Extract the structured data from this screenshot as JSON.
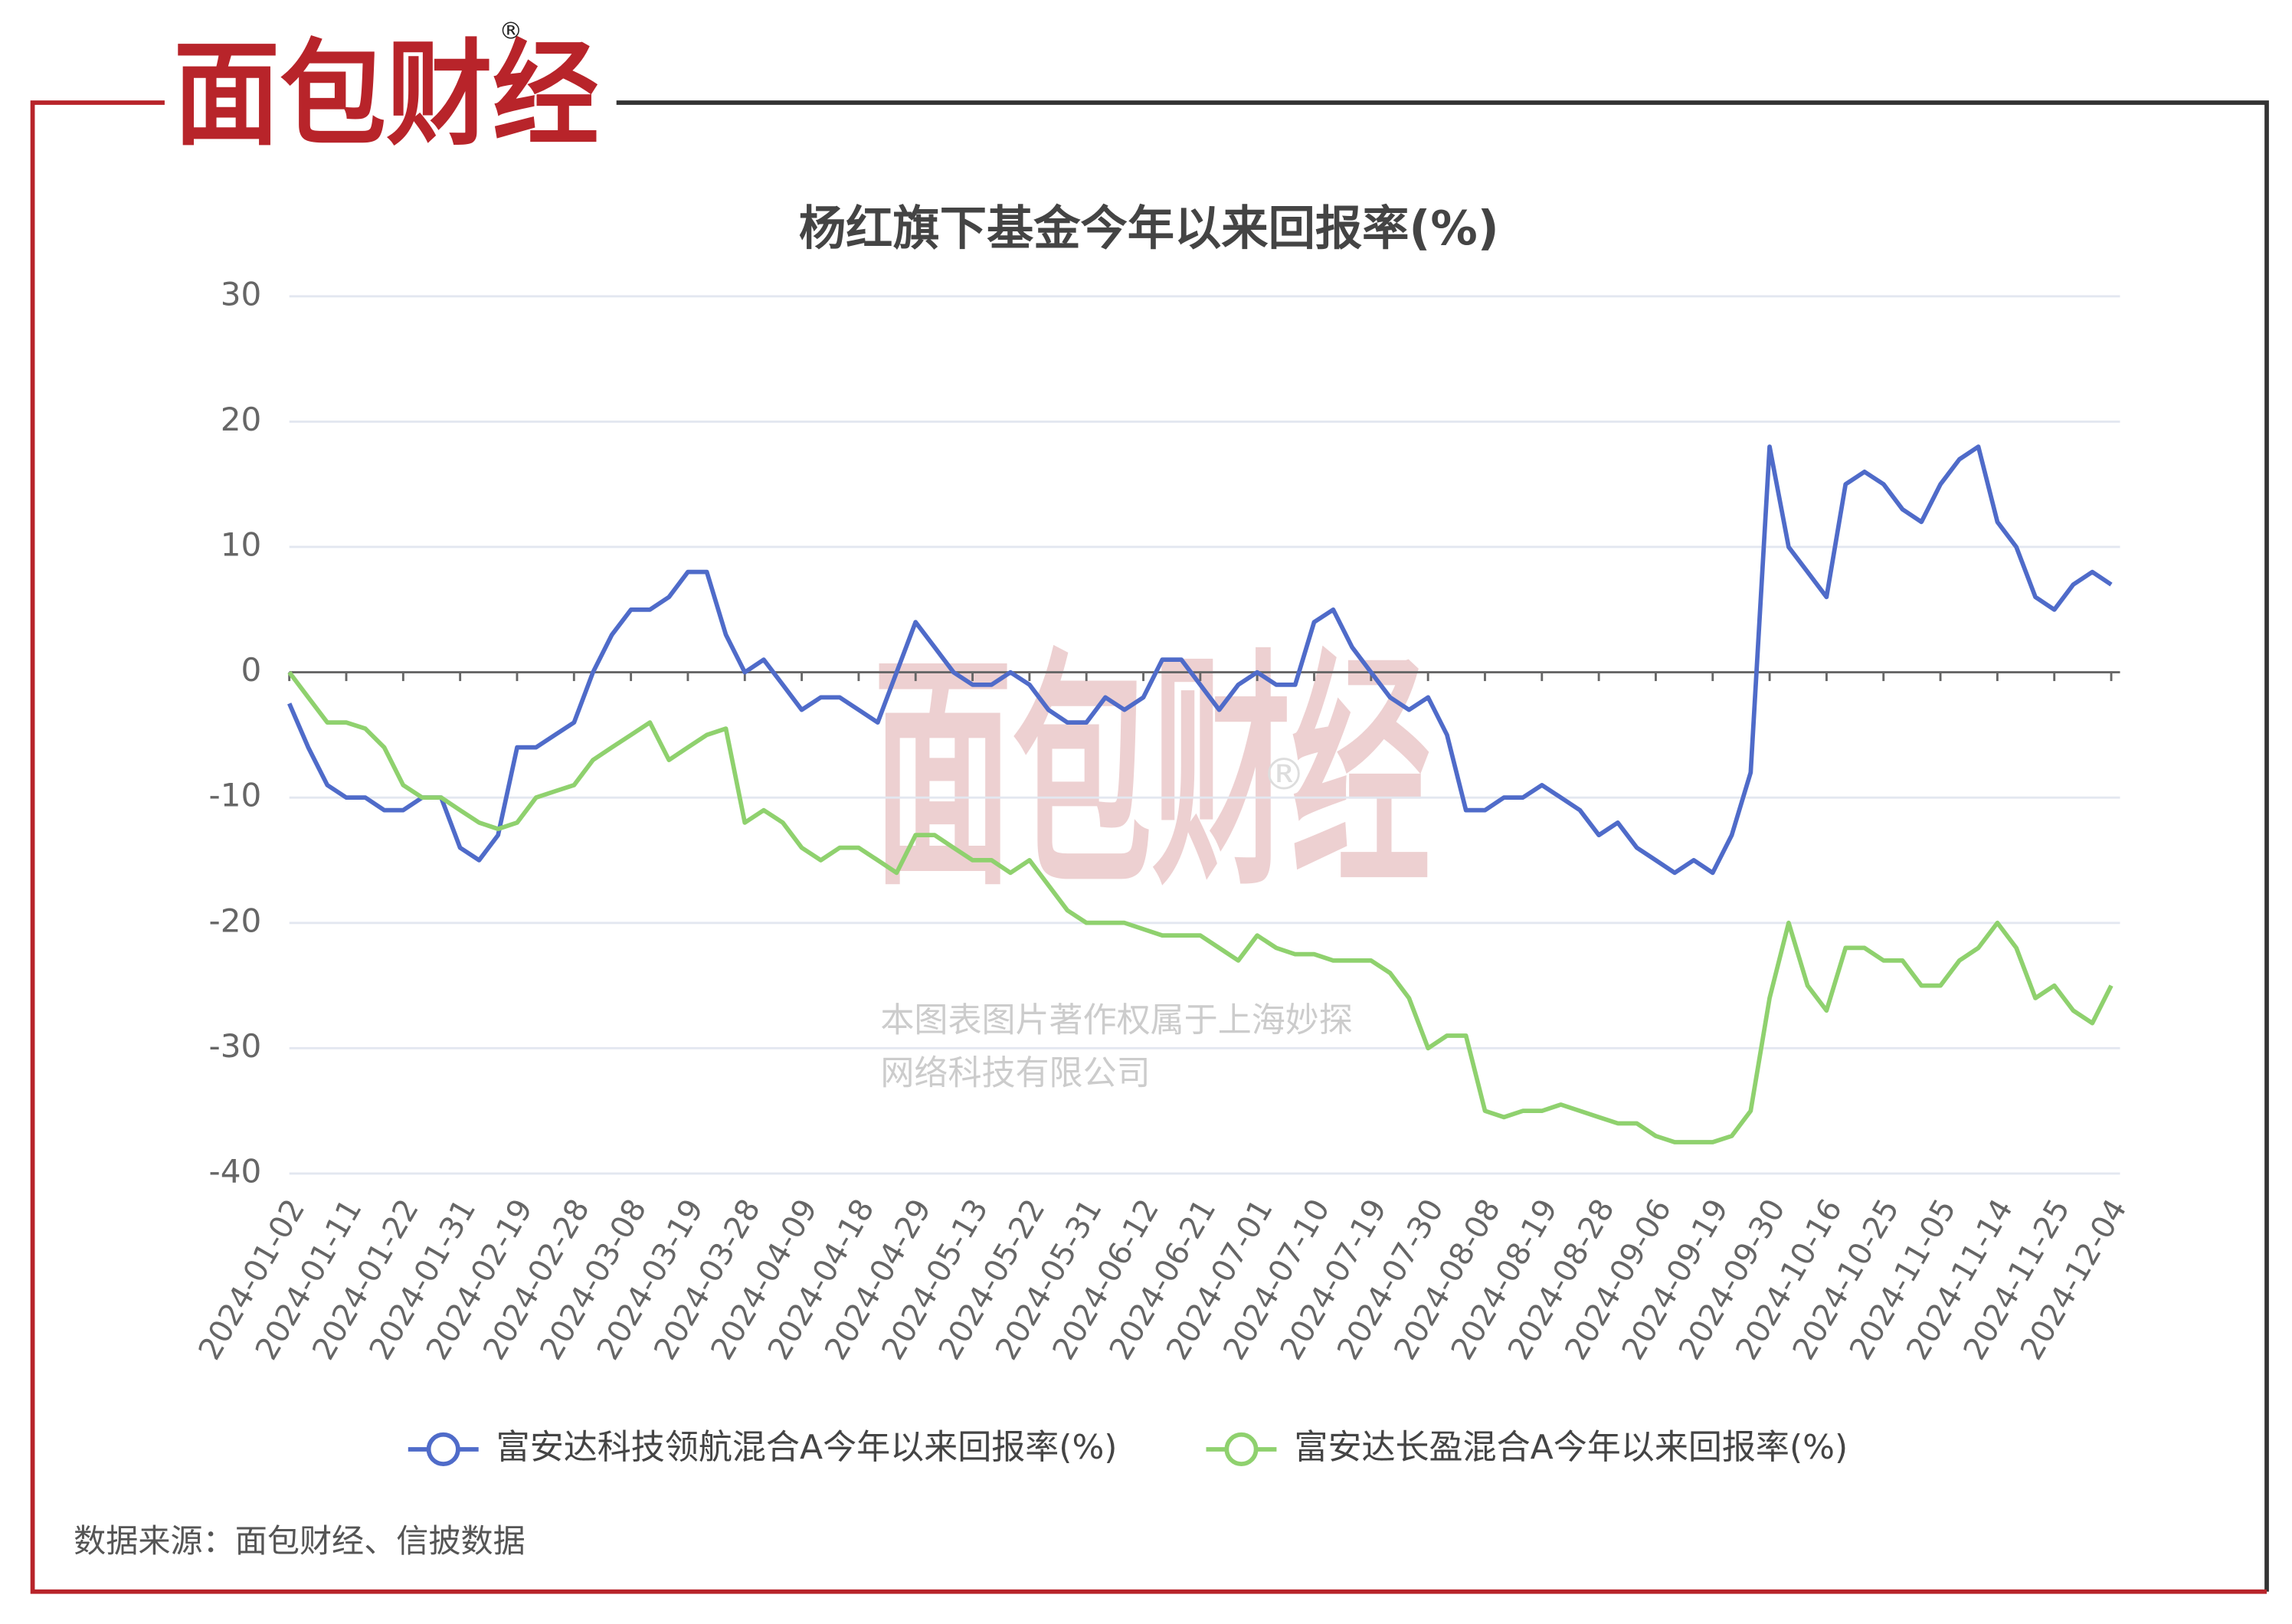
{
  "logo": {
    "name": "面包财经",
    "mark": "®"
  },
  "watermark": {
    "name": "面包财经",
    "mark": "®",
    "line1": "本图表图片著作权属于上海妙探",
    "line2": "网络科技有限公司"
  },
  "source": "数据来源：面包财经、信披数据",
  "chart_data": {
    "type": "line",
    "title": "杨红旗下基金今年以来回报率(%)",
    "categories": [
      "2024-01-02",
      null,
      null,
      "2024-01-11",
      null,
      null,
      "2024-01-22",
      null,
      null,
      "2024-01-31",
      null,
      null,
      "2024-02-19",
      null,
      null,
      "2024-02-28",
      null,
      null,
      "2024-03-08",
      null,
      null,
      "2024-03-19",
      null,
      null,
      "2024-03-28",
      null,
      null,
      "2024-04-09",
      null,
      null,
      "2024-04-18",
      null,
      null,
      "2024-04-29",
      null,
      null,
      "2024-05-13",
      null,
      null,
      "2024-05-22",
      null,
      null,
      "2024-05-31",
      null,
      null,
      "2024-06-12",
      null,
      null,
      "2024-06-21",
      null,
      null,
      "2024-07-01",
      null,
      null,
      "2024-07-10",
      null,
      null,
      "2024-07-19",
      null,
      null,
      "2024-07-30",
      null,
      null,
      "2024-08-08",
      null,
      null,
      "2024-08-19",
      null,
      null,
      "2024-08-28",
      null,
      null,
      "2024-09-06",
      null,
      null,
      "2024-09-19",
      null,
      null,
      "2024-09-30",
      null,
      null,
      "2024-10-16",
      null,
      null,
      "2024-10-25",
      null,
      null,
      "2024-11-05",
      null,
      null,
      "2024-11-14",
      null,
      null,
      "2024-11-25",
      null,
      null,
      "2024-12-04"
    ],
    "series": [
      {
        "name": "富安达科技领航混合A今年以来回报率(%)",
        "color": "#4f6bc9",
        "values": [
          -2.5,
          -6,
          -9,
          -10,
          -10,
          -11,
          -11,
          -10,
          -10,
          -14,
          -15,
          -13,
          -6,
          -6,
          -5,
          -4,
          0,
          3,
          5,
          5,
          6,
          8,
          8,
          3,
          0,
          1,
          -1,
          -3,
          -2,
          -2,
          -3,
          -4,
          0,
          4,
          2,
          0,
          -1,
          -1,
          0,
          -1,
          -3,
          -4,
          -4,
          -2,
          -3,
          -2,
          1,
          1,
          -1,
          -3,
          -1,
          0,
          -1,
          -1,
          4,
          5,
          2,
          0,
          -2,
          -3,
          -2,
          -5,
          -11,
          -11,
          -10,
          -10,
          -9,
          -10,
          -11,
          -13,
          -12,
          -14,
          -15,
          -16,
          -15,
          -16,
          -13,
          -8,
          18,
          10,
          8,
          6,
          15,
          16,
          15,
          13,
          12,
          15,
          17,
          18,
          12,
          10,
          6,
          5,
          7,
          8,
          7
        ]
      },
      {
        "name": "富安达长盈混合A今年以来回报率(%)",
        "color": "#8fd16e",
        "values": [
          0,
          -2,
          -4,
          -4,
          -4.5,
          -6,
          -9,
          -10,
          -10,
          -11,
          -12,
          -12.5,
          -12,
          -10,
          -9.5,
          -9,
          -7,
          -6,
          -5,
          -4,
          -7,
          -6,
          -5,
          -4.5,
          -12,
          -11,
          -12,
          -14,
          -15,
          -14,
          -14,
          -15,
          -16,
          -13,
          -13,
          -14,
          -15,
          -15,
          -16,
          -15,
          -17,
          -19,
          -20,
          -20,
          -20,
          -20.5,
          -21,
          -21,
          -21,
          -22,
          -23,
          -21,
          -22,
          -22.5,
          -22.5,
          -23,
          -23,
          -23,
          -24,
          -26,
          -30,
          -29,
          -29,
          -35,
          -35.5,
          -35,
          -35,
          -34.5,
          -35,
          -35.5,
          -36,
          -36,
          -37,
          -37.5,
          -37.5,
          -37.5,
          -37,
          -35,
          -26,
          -20,
          -25,
          -27,
          -22,
          -22,
          -23,
          -23,
          -25,
          -25,
          -23,
          -22,
          -20,
          -22,
          -26,
          -25,
          -27,
          -28,
          -25
        ]
      }
    ],
    "ylim": [
      -40,
      30
    ],
    "yticks": [
      -40,
      -30,
      -20,
      -10,
      0,
      10,
      20,
      30
    ],
    "grid": true
  }
}
